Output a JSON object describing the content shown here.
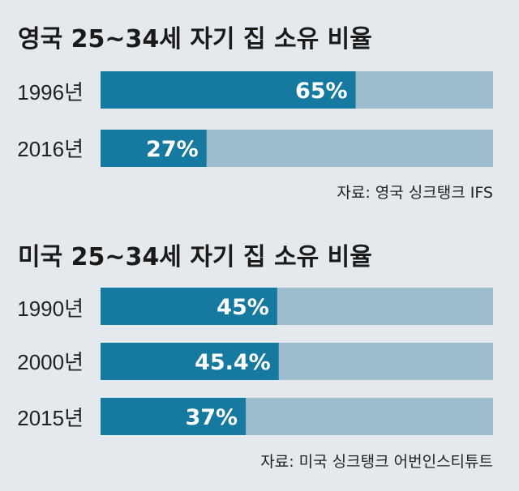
{
  "colors": {
    "background": "#e4e9ee",
    "bar_fill": "#1579a0",
    "bar_track": "#9dbdcf",
    "value_text": "#ffffff"
  },
  "chart_data": [
    {
      "type": "bar",
      "orientation": "horizontal",
      "title": "영국 25~34세 자기 집 소유 비율",
      "categories": [
        "1996년",
        "2016년"
      ],
      "values": [
        65,
        27
      ],
      "value_labels": [
        "65%",
        "27%"
      ],
      "xlim": [
        0,
        100
      ],
      "source": "자료: 영국 싱크탱크 IFS",
      "grid": false
    },
    {
      "type": "bar",
      "orientation": "horizontal",
      "title": "미국 25~34세 자기 집 소유 비율",
      "categories": [
        "1990년",
        "2000년",
        "2015년"
      ],
      "values": [
        45,
        45.4,
        37
      ],
      "value_labels": [
        "45%",
        "45.4%",
        "37%"
      ],
      "xlim": [
        0,
        100
      ],
      "source": "자료: 미국 싱크탱크 어번인스티튜트",
      "grid": false
    }
  ]
}
